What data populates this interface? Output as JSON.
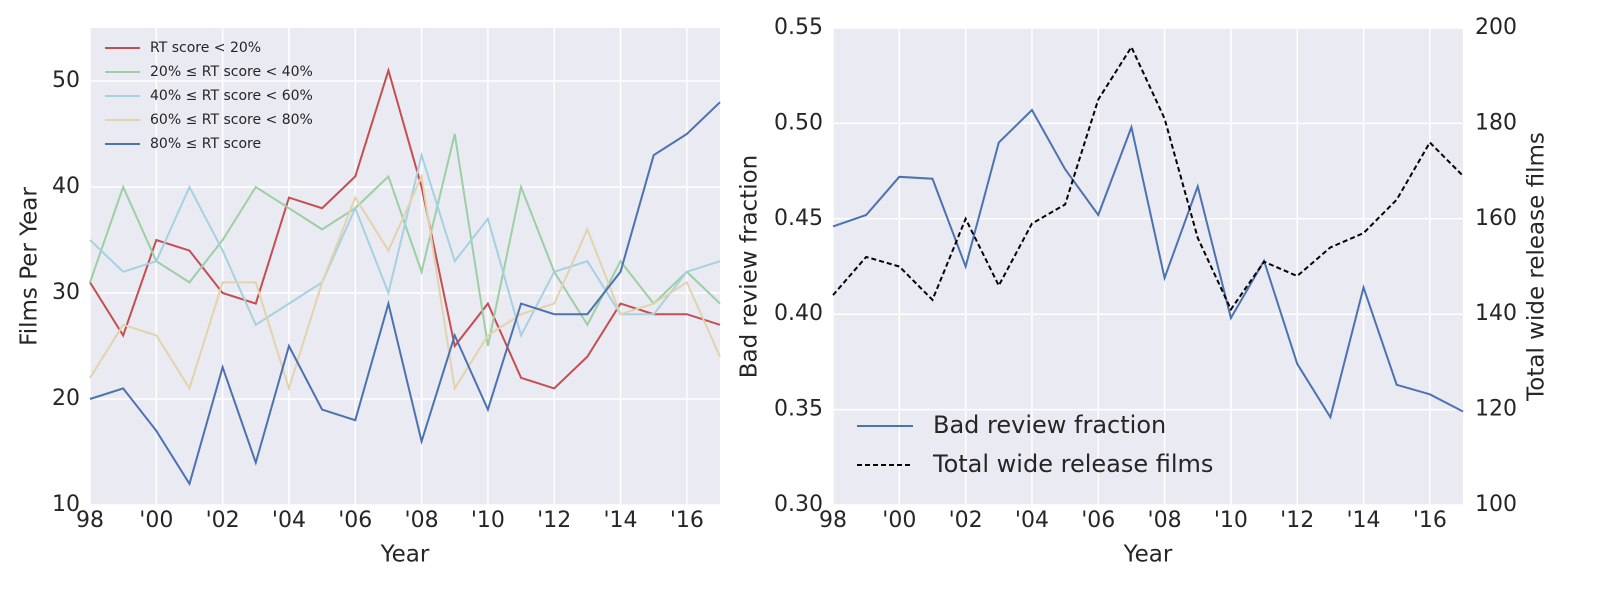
{
  "chart_data": [
    {
      "type": "line",
      "xlabel": "Year",
      "ylabel": "Films Per Year",
      "x": [
        1998,
        1999,
        2000,
        2001,
        2002,
        2003,
        2004,
        2005,
        2006,
        2007,
        2008,
        2009,
        2010,
        2011,
        2012,
        2013,
        2014,
        2015,
        2016,
        2017
      ],
      "xlim": [
        1998,
        2017
      ],
      "xticks": [
        {
          "value": 1998,
          "label": "98"
        },
        {
          "value": 2000,
          "label": "'00"
        },
        {
          "value": 2002,
          "label": "'02"
        },
        {
          "value": 2004,
          "label": "'04"
        },
        {
          "value": 2006,
          "label": "'06"
        },
        {
          "value": 2008,
          "label": "'08"
        },
        {
          "value": 2010,
          "label": "'10"
        },
        {
          "value": 2012,
          "label": "'12"
        },
        {
          "value": 2014,
          "label": "'14"
        },
        {
          "value": 2016,
          "label": "'16"
        }
      ],
      "ylim": [
        10,
        55
      ],
      "yticks": [
        10,
        20,
        30,
        40,
        50
      ],
      "grid": true,
      "legend": "upper left",
      "series": [
        {
          "name": "RT score < 20%",
          "color": "#c44e52",
          "values": [
            31,
            26,
            35,
            34,
            30,
            29,
            39,
            38,
            41,
            51,
            40,
            25,
            29,
            22,
            21,
            24,
            29,
            28,
            28,
            27
          ]
        },
        {
          "name": "20% ≤ RT score < 40%",
          "color": "#9ccfa4",
          "values": [
            31,
            40,
            33,
            31,
            35,
            40,
            38,
            36,
            38,
            41,
            32,
            45,
            25,
            40,
            32,
            27,
            33,
            29,
            32,
            29
          ]
        },
        {
          "name": "40% ≤ RT score < 60%",
          "color": "#a6d1e0",
          "values": [
            35,
            32,
            33,
            40,
            34,
            27,
            29,
            31,
            38,
            30,
            43,
            33,
            37,
            26,
            32,
            33,
            28,
            28,
            32,
            33
          ]
        },
        {
          "name": "60% ≤ RT score < 80%",
          "color": "#e3d3ad",
          "values": [
            22,
            27,
            26,
            21,
            31,
            31,
            21,
            31,
            39,
            34,
            41,
            21,
            26,
            28,
            29,
            36,
            28,
            29,
            31,
            24
          ]
        },
        {
          "name": "80% ≤ RT score",
          "color": "#4c72b0",
          "values": [
            20,
            21,
            17,
            12,
            23,
            14,
            25,
            19,
            18,
            29,
            16,
            26,
            19,
            29,
            28,
            28,
            32,
            43,
            45,
            48
          ]
        }
      ]
    },
    {
      "type": "line",
      "xlabel": "Year",
      "ylabel": "Bad review fraction",
      "y2label": "Total wide release films",
      "x": [
        1998,
        1999,
        2000,
        2001,
        2002,
        2003,
        2004,
        2005,
        2006,
        2007,
        2008,
        2009,
        2010,
        2011,
        2012,
        2013,
        2014,
        2015,
        2016,
        2017
      ],
      "xlim": [
        1998,
        2017
      ],
      "xticks": [
        {
          "value": 1998,
          "label": "98"
        },
        {
          "value": 2000,
          "label": "'00"
        },
        {
          "value": 2002,
          "label": "'02"
        },
        {
          "value": 2004,
          "label": "'04"
        },
        {
          "value": 2006,
          "label": "'06"
        },
        {
          "value": 2008,
          "label": "'08"
        },
        {
          "value": 2010,
          "label": "'10"
        },
        {
          "value": 2012,
          "label": "'12"
        },
        {
          "value": 2014,
          "label": "'14"
        },
        {
          "value": 2016,
          "label": "'16"
        }
      ],
      "ylim": [
        0.3,
        0.55
      ],
      "yticks": [
        {
          "value": 0.3,
          "label": "0.30"
        },
        {
          "value": 0.35,
          "label": "0.35"
        },
        {
          "value": 0.4,
          "label": "0.40"
        },
        {
          "value": 0.45,
          "label": "0.45"
        },
        {
          "value": 0.5,
          "label": "0.50"
        },
        {
          "value": 0.55,
          "label": "0.55"
        }
      ],
      "y2lim": [
        100,
        200
      ],
      "y2ticks": [
        100,
        120,
        140,
        160,
        180,
        200
      ],
      "grid": true,
      "legend": "lower left",
      "series": [
        {
          "name": "Bad review fraction",
          "color": "#4c72b0",
          "values": [
            0.446,
            0.452,
            0.472,
            0.471,
            0.425,
            0.49,
            0.507,
            0.476,
            0.452,
            0.498,
            0.419,
            0.467,
            0.398,
            0.428,
            0.374,
            0.346,
            0.414,
            0.363,
            0.358,
            0.349
          ]
        },
        {
          "name": "Total wide release films",
          "color": "#000000",
          "axis": "y2",
          "dashed": true,
          "values": [
            144,
            152,
            150,
            143,
            160,
            146,
            159,
            163,
            185,
            196,
            181,
            156,
            141,
            151,
            148,
            154,
            157,
            164,
            176,
            169
          ]
        }
      ]
    }
  ]
}
